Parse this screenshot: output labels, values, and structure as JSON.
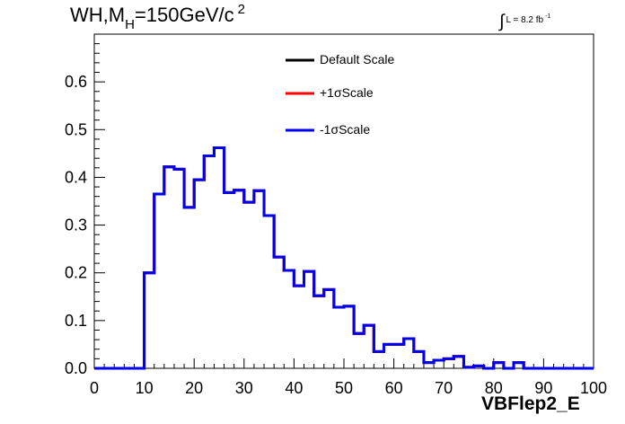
{
  "title": {
    "prefix": "WH,M",
    "subscript": "H",
    "value": "=150GeV/c",
    "superscript": "2"
  },
  "luminosity": {
    "integral_symbol": "∫",
    "label": "L = 8.2 fb",
    "superscript": "-1"
  },
  "chart_data": {
    "type": "histogram",
    "xlabel": "VBFlep2_E",
    "ylabel": "",
    "xlim": [
      0,
      100
    ],
    "ylim": [
      0,
      0.7
    ],
    "x_ticks": [
      0,
      10,
      20,
      30,
      40,
      50,
      60,
      70,
      80,
      90,
      100
    ],
    "x_tick_labels": [
      "0",
      "10",
      "20",
      "30",
      "40",
      "50",
      "60",
      "70",
      "80",
      "90",
      "100"
    ],
    "y_ticks": [
      0,
      0.1,
      0.2,
      0.3,
      0.4,
      0.5,
      0.6
    ],
    "y_tick_labels": [
      "0.0",
      "0.1",
      "0.2",
      "0.3",
      "0.4",
      "0.5",
      "0.6"
    ],
    "bin_width": 2,
    "bin_edges_start": 0,
    "grid": false,
    "legend_position": "top-center",
    "series": [
      {
        "name": "Default Scale",
        "color": "#000000",
        "values": [
          0,
          0,
          0,
          0,
          0,
          0.2,
          0.365,
          0.422,
          0.417,
          0.337,
          0.395,
          0.445,
          0.462,
          0.368,
          0.373,
          0.348,
          0.372,
          0.32,
          0.233,
          0.205,
          0.173,
          0.203,
          0.152,
          0.165,
          0.128,
          0.13,
          0.073,
          0.09,
          0.035,
          0.05,
          0.05,
          0.062,
          0.035,
          0.012,
          0.017,
          0.02,
          0.025,
          0.002,
          0.005,
          0,
          0.012,
          0,
          0.012,
          0,
          0,
          0,
          0,
          0,
          0,
          0
        ]
      },
      {
        "name": "+1σScale",
        "color": "#ff0000",
        "values": [
          0,
          0,
          0,
          0,
          0,
          0.2,
          0.365,
          0.422,
          0.417,
          0.337,
          0.395,
          0.445,
          0.462,
          0.368,
          0.373,
          0.348,
          0.372,
          0.32,
          0.233,
          0.205,
          0.173,
          0.203,
          0.152,
          0.165,
          0.128,
          0.13,
          0.073,
          0.09,
          0.035,
          0.05,
          0.05,
          0.062,
          0.035,
          0.012,
          0.017,
          0.02,
          0.025,
          0.002,
          0.005,
          0,
          0.012,
          0,
          0.012,
          0,
          0,
          0,
          0,
          0,
          0,
          0
        ]
      },
      {
        "name": "-1σScale",
        "color": "#0000ee",
        "values": [
          0,
          0,
          0,
          0,
          0,
          0.2,
          0.365,
          0.422,
          0.417,
          0.337,
          0.395,
          0.445,
          0.462,
          0.368,
          0.373,
          0.348,
          0.372,
          0.32,
          0.233,
          0.205,
          0.173,
          0.203,
          0.152,
          0.165,
          0.128,
          0.13,
          0.073,
          0.09,
          0.035,
          0.05,
          0.05,
          0.062,
          0.035,
          0.012,
          0.017,
          0.02,
          0.025,
          0.002,
          0.005,
          0,
          0.012,
          0,
          0.012,
          0,
          0,
          0,
          0,
          0,
          0,
          0
        ]
      }
    ]
  }
}
